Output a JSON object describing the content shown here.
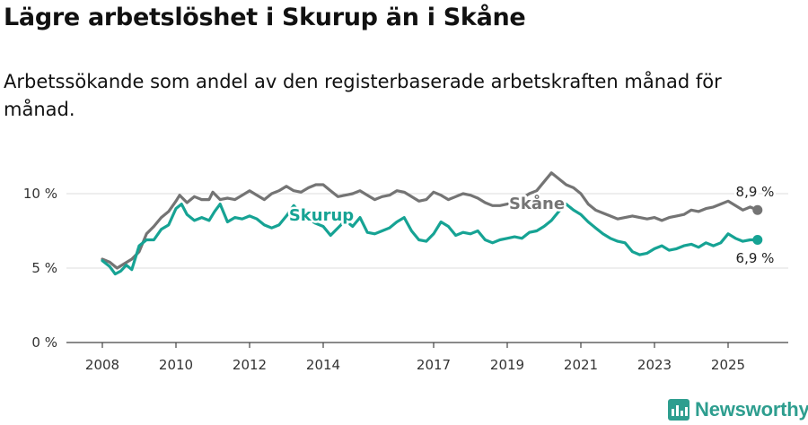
{
  "title": "Lägre arbetslöshet i Skurup än i Skåne",
  "subtitle": "Arbetssökande som andel av den registerbaserade arbetskraften månad för månad.",
  "brand": {
    "name": "Newsworthy",
    "icon": "newsworthy-logo-icon"
  },
  "colors": {
    "skurup": "#16a394",
    "skane": "#747474",
    "grid": "#dddddd",
    "axis": "#444444",
    "text": "#333333"
  },
  "chart_data": {
    "type": "line",
    "title": "Lägre arbetslöshet i Skurup än i Skåne",
    "xlabel": "",
    "ylabel": "",
    "xlim": [
      2007.7,
      2026.8
    ],
    "ylim": [
      0,
      12
    ],
    "grid": true,
    "yticks": [
      {
        "value": 0,
        "label": "0 %"
      },
      {
        "value": 5,
        "label": "5 %"
      },
      {
        "value": 10,
        "label": "10 %"
      }
    ],
    "xticks": [
      {
        "value": 2008,
        "label": "2008"
      },
      {
        "value": 2010,
        "label": "2010"
      },
      {
        "value": 2012,
        "label": "2012"
      },
      {
        "value": 2014,
        "label": "2014"
      },
      {
        "value": 2017,
        "label": "2017"
      },
      {
        "value": 2019,
        "label": "2019"
      },
      {
        "value": 2021,
        "label": "2021"
      },
      {
        "value": 2023,
        "label": "2023"
      },
      {
        "value": 2025,
        "label": "2025"
      }
    ],
    "series": [
      {
        "name": "Skåne",
        "label": "Skåne",
        "end_label": "8,9 %",
        "x": [
          2008.0,
          2008.2,
          2008.4,
          2008.6,
          2008.8,
          2009.0,
          2009.2,
          2009.4,
          2009.6,
          2009.8,
          2010.0,
          2010.1,
          2010.3,
          2010.5,
          2010.7,
          2010.9,
          2011.0,
          2011.2,
          2011.4,
          2011.6,
          2011.8,
          2012.0,
          2012.2,
          2012.4,
          2012.6,
          2012.8,
          2013.0,
          2013.2,
          2013.4,
          2013.6,
          2013.8,
          2014.0,
          2014.2,
          2014.4,
          2014.6,
          2014.8,
          2015.0,
          2015.2,
          2015.4,
          2015.6,
          2015.8,
          2016.0,
          2016.2,
          2016.4,
          2016.6,
          2016.8,
          2017.0,
          2017.2,
          2017.4,
          2017.6,
          2017.8,
          2018.0,
          2018.2,
          2018.4,
          2018.6,
          2018.8,
          2019.0,
          2019.2,
          2019.4,
          2019.6,
          2019.8,
          2020.0,
          2020.2,
          2020.4,
          2020.6,
          2020.8,
          2021.0,
          2021.2,
          2021.4,
          2021.6,
          2021.8,
          2022.0,
          2022.2,
          2022.4,
          2022.6,
          2022.8,
          2023.0,
          2023.2,
          2023.4,
          2023.6,
          2023.8,
          2024.0,
          2024.2,
          2024.4,
          2024.6,
          2024.8,
          2025.0,
          2025.2,
          2025.4,
          2025.6,
          2025.8
        ],
        "values": [
          5.6,
          5.4,
          5.0,
          5.3,
          5.6,
          6.1,
          7.3,
          7.8,
          8.4,
          8.8,
          9.5,
          9.9,
          9.4,
          9.8,
          9.6,
          9.6,
          10.1,
          9.6,
          9.7,
          9.6,
          9.9,
          10.2,
          9.9,
          9.6,
          10.0,
          10.2,
          10.5,
          10.2,
          10.1,
          10.4,
          10.6,
          10.6,
          10.2,
          9.8,
          9.9,
          10.0,
          10.2,
          9.9,
          9.6,
          9.8,
          9.9,
          10.2,
          10.1,
          9.8,
          9.5,
          9.6,
          10.1,
          9.9,
          9.6,
          9.8,
          10.0,
          9.9,
          9.7,
          9.4,
          9.2,
          9.2,
          9.3,
          9.4,
          9.7,
          10.0,
          10.2,
          10.8,
          11.4,
          11.0,
          10.6,
          10.4,
          10.0,
          9.3,
          8.9,
          8.7,
          8.5,
          8.3,
          8.4,
          8.5,
          8.4,
          8.3,
          8.4,
          8.2,
          8.4,
          8.5,
          8.6,
          8.9,
          8.8,
          9.0,
          9.1,
          9.3,
          9.5,
          9.2,
          8.9,
          9.1,
          8.9
        ]
      },
      {
        "name": "Skurup",
        "label": "Skurup",
        "end_label": "6,9 %",
        "x": [
          2008.0,
          2008.2,
          2008.35,
          2008.5,
          2008.65,
          2008.8,
          2009.0,
          2009.2,
          2009.4,
          2009.6,
          2009.8,
          2010.0,
          2010.15,
          2010.3,
          2010.5,
          2010.7,
          2010.9,
          2011.05,
          2011.2,
          2011.4,
          2011.6,
          2011.8,
          2012.0,
          2012.2,
          2012.4,
          2012.6,
          2012.8,
          2013.0,
          2013.2,
          2013.4,
          2013.6,
          2013.8,
          2014.0,
          2014.2,
          2014.4,
          2014.6,
          2014.8,
          2015.0,
          2015.2,
          2015.4,
          2015.6,
          2015.8,
          2016.0,
          2016.2,
          2016.4,
          2016.6,
          2016.8,
          2017.0,
          2017.2,
          2017.4,
          2017.6,
          2017.8,
          2018.0,
          2018.2,
          2018.4,
          2018.6,
          2018.8,
          2019.0,
          2019.2,
          2019.4,
          2019.6,
          2019.8,
          2020.0,
          2020.2,
          2020.4,
          2020.6,
          2020.8,
          2021.0,
          2021.2,
          2021.4,
          2021.6,
          2021.8,
          2022.0,
          2022.2,
          2022.4,
          2022.6,
          2022.8,
          2023.0,
          2023.2,
          2023.4,
          2023.6,
          2023.8,
          2024.0,
          2024.2,
          2024.4,
          2024.6,
          2024.8,
          2025.0,
          2025.2,
          2025.4,
          2025.6,
          2025.8
        ],
        "values": [
          5.5,
          5.1,
          4.6,
          4.8,
          5.2,
          4.9,
          6.5,
          6.9,
          6.9,
          7.6,
          7.9,
          9.0,
          9.3,
          8.6,
          8.2,
          8.4,
          8.2,
          8.8,
          9.3,
          8.1,
          8.4,
          8.3,
          8.5,
          8.3,
          7.9,
          7.7,
          7.9,
          8.5,
          9.2,
          8.6,
          8.3,
          8.0,
          7.8,
          7.2,
          7.7,
          8.2,
          7.8,
          8.4,
          7.4,
          7.3,
          7.5,
          7.7,
          8.1,
          8.4,
          7.5,
          6.9,
          6.8,
          7.3,
          8.1,
          7.8,
          7.2,
          7.4,
          7.3,
          7.5,
          6.9,
          6.7,
          6.9,
          7.0,
          7.1,
          7.0,
          7.4,
          7.5,
          7.8,
          8.2,
          8.8,
          9.3,
          8.9,
          8.6,
          8.1,
          7.7,
          7.3,
          7.0,
          6.8,
          6.7,
          6.1,
          5.9,
          6.0,
          6.3,
          6.5,
          6.2,
          6.3,
          6.5,
          6.6,
          6.4,
          6.7,
          6.5,
          6.7,
          7.3,
          7.0,
          6.8,
          6.9,
          6.9
        ]
      }
    ]
  }
}
